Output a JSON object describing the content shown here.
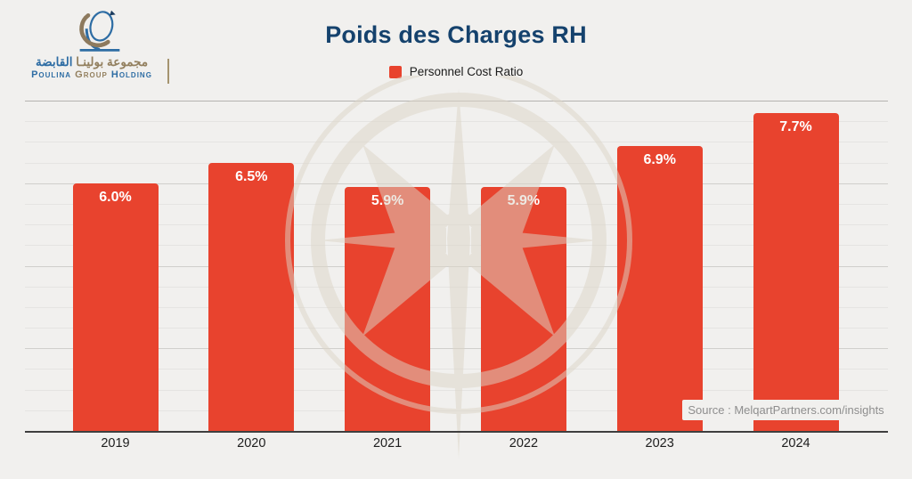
{
  "logo": {
    "arabic_primary": "مجموعة بولينـا",
    "arabic_secondary": "القابضة",
    "latin_word1": "Poulina",
    "latin_word2": "Group",
    "latin_word3": "Holding"
  },
  "header": {
    "title": "Poids des Charges RH"
  },
  "legend": {
    "label": "Personnel Cost Ratio"
  },
  "source": {
    "text": "Source : MelqartPartners.com/insights"
  },
  "colors": {
    "bar": "#e8432e",
    "bar_value_label": "#ffffff",
    "title": "#15426d",
    "legend_text": "#1b1b1b",
    "source_text": "#8e8e8e",
    "axis": "#3f3f3f",
    "logo_blue": "#2e6da4",
    "logo_tan": "#93805f"
  },
  "chart_data": {
    "type": "bar",
    "title": "Poids des Charges RH",
    "series_name": "Personnel Cost Ratio",
    "categories": [
      "2019",
      "2020",
      "2021",
      "2022",
      "2023",
      "2024"
    ],
    "values": [
      6.0,
      6.5,
      5.9,
      5.9,
      6.9,
      7.7
    ],
    "value_labels": [
      "6.0%",
      "6.5%",
      "5.9%",
      "5.9%",
      "6.9%",
      "7.7%"
    ],
    "unit": "%",
    "ylim": [
      0,
      8
    ],
    "gridline_step_minor": 0.5,
    "gridline_step_major": 2,
    "grid": true,
    "legend_position": "top",
    "y_axis_labels_shown": false,
    "bar_color": "#e8432e"
  }
}
